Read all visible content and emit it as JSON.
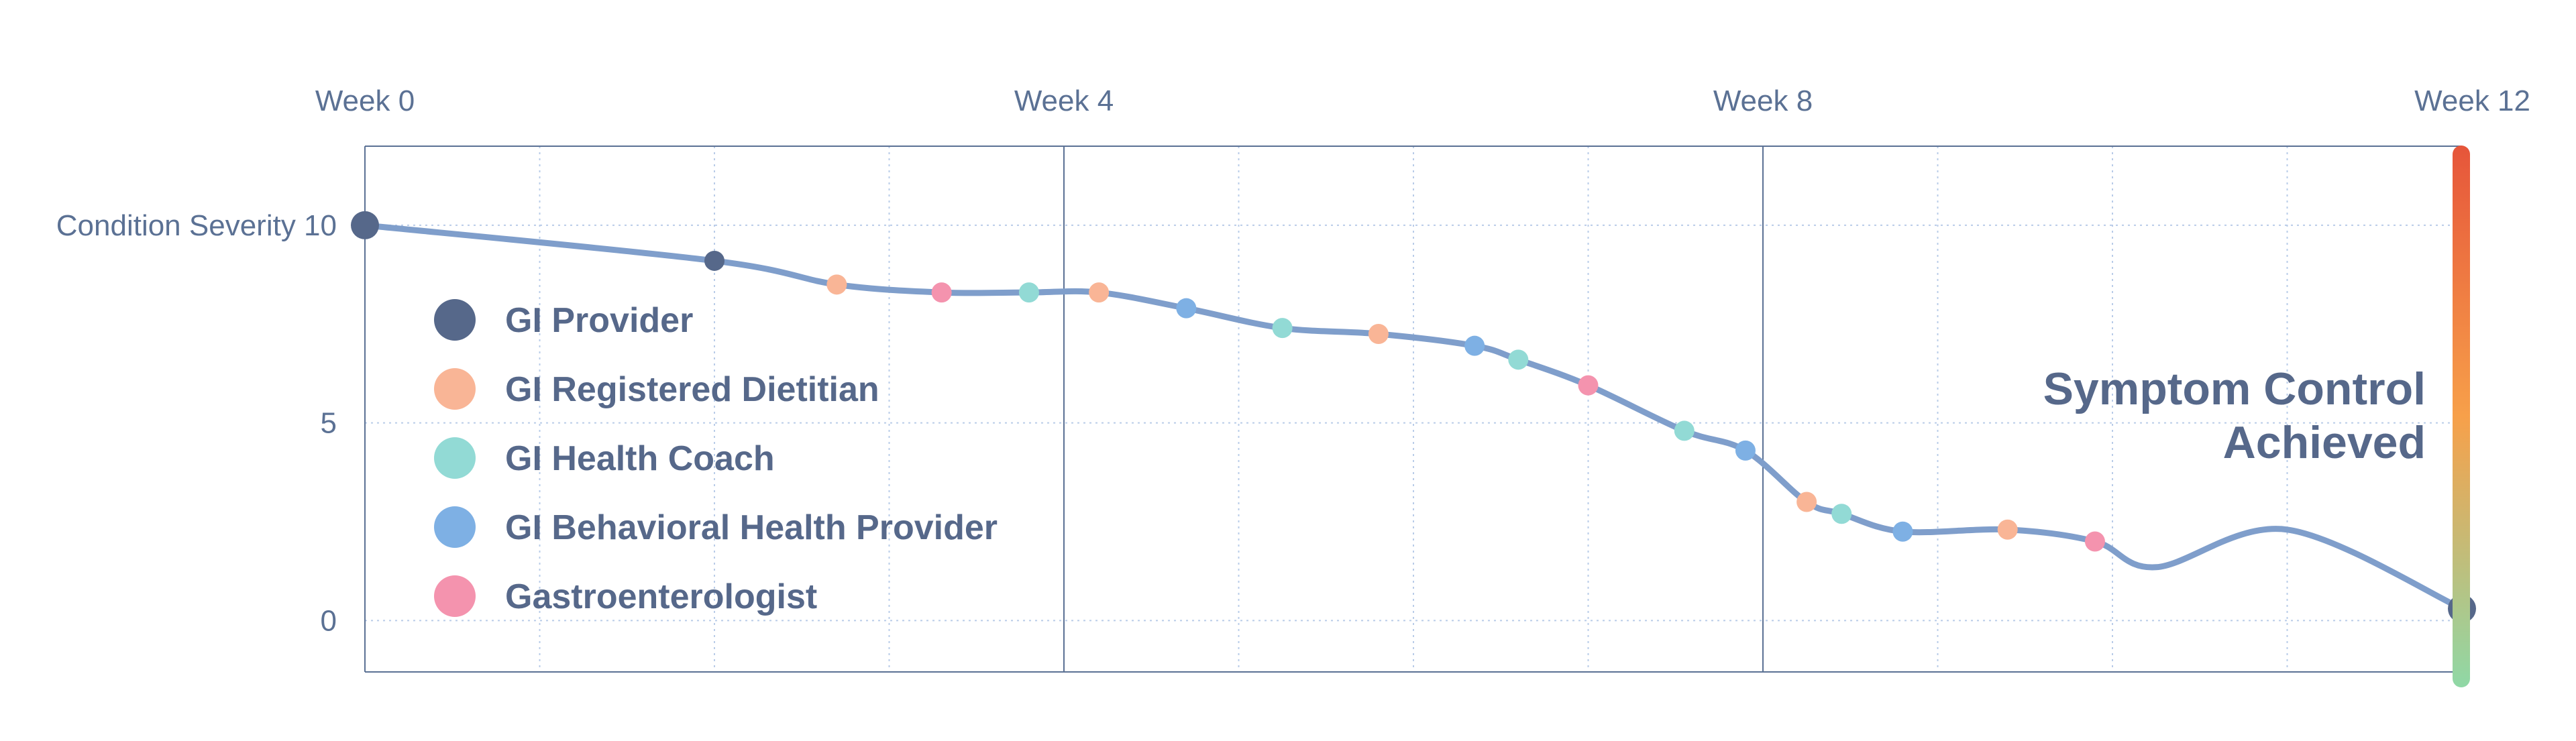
{
  "chart_data": {
    "type": "line",
    "x_axis": {
      "ticks": [
        "Week 0",
        "Week 4",
        "Week 8",
        "Week 12"
      ],
      "range": [
        0,
        12
      ]
    },
    "y_axis": {
      "ticks": [
        "Condition Severity 10",
        "5",
        "0"
      ],
      "range": [
        -1.3,
        12
      ]
    },
    "grid": true,
    "colors": {
      "line": "#7f9ecb",
      "axis": "#5b7194",
      "grid": "#b9cce8",
      "gradient": [
        "#e6553a",
        "#f7a04a",
        "#8fd8a6"
      ]
    },
    "series": [
      {
        "type": "line",
        "points": [
          {
            "x": 0.0,
            "y": 10.0
          },
          {
            "x": 2.0,
            "y": 9.1
          },
          {
            "x": 2.7,
            "y": 8.5
          },
          {
            "x": 3.3,
            "y": 8.3
          },
          {
            "x": 3.8,
            "y": 8.3
          },
          {
            "x": 4.2,
            "y": 8.3
          },
          {
            "x": 4.7,
            "y": 7.9
          },
          {
            "x": 5.25,
            "y": 7.4
          },
          {
            "x": 5.8,
            "y": 7.25
          },
          {
            "x": 6.35,
            "y": 6.95
          },
          {
            "x": 6.6,
            "y": 6.6
          },
          {
            "x": 7.0,
            "y": 5.95
          },
          {
            "x": 7.55,
            "y": 4.8
          },
          {
            "x": 7.9,
            "y": 4.3
          },
          {
            "x": 8.25,
            "y": 3.0
          },
          {
            "x": 8.45,
            "y": 2.7
          },
          {
            "x": 8.8,
            "y": 2.25
          },
          {
            "x": 9.4,
            "y": 2.3
          },
          {
            "x": 9.9,
            "y": 2.0
          },
          {
            "x": 10.25,
            "y": 1.35
          },
          {
            "x": 11.0,
            "y": 2.3
          },
          {
            "x": 12.0,
            "y": 0.3
          }
        ]
      }
    ],
    "markers": [
      {
        "x": 0.0,
        "y": 10.0,
        "role": "GI Provider",
        "size": "large"
      },
      {
        "x": 2.0,
        "y": 9.1,
        "role": "GI Provider"
      },
      {
        "x": 2.7,
        "y": 8.5,
        "role": "GI Registered Dietitian"
      },
      {
        "x": 3.3,
        "y": 8.3,
        "role": "Gastroenterologist"
      },
      {
        "x": 3.8,
        "y": 8.3,
        "role": "GI Health Coach"
      },
      {
        "x": 4.2,
        "y": 8.3,
        "role": "GI Registered Dietitian"
      },
      {
        "x": 4.7,
        "y": 7.9,
        "role": "GI Behavioral Health Provider"
      },
      {
        "x": 5.25,
        "y": 7.4,
        "role": "GI Health Coach"
      },
      {
        "x": 5.8,
        "y": 7.25,
        "role": "GI Registered Dietitian"
      },
      {
        "x": 6.35,
        "y": 6.95,
        "role": "GI Behavioral Health Provider"
      },
      {
        "x": 6.6,
        "y": 6.6,
        "role": "GI Health Coach"
      },
      {
        "x": 7.0,
        "y": 5.95,
        "role": "Gastroenterologist"
      },
      {
        "x": 7.55,
        "y": 4.8,
        "role": "GI Health Coach"
      },
      {
        "x": 7.9,
        "y": 4.3,
        "role": "GI Behavioral Health Provider"
      },
      {
        "x": 8.25,
        "y": 3.0,
        "role": "GI Registered Dietitian"
      },
      {
        "x": 8.45,
        "y": 2.7,
        "role": "GI Health Coach"
      },
      {
        "x": 8.8,
        "y": 2.25,
        "role": "GI Behavioral Health Provider"
      },
      {
        "x": 9.4,
        "y": 2.3,
        "role": "GI Registered Dietitian"
      },
      {
        "x": 9.9,
        "y": 2.0,
        "role": "Gastroenterologist"
      },
      {
        "x": 12.0,
        "y": 0.3,
        "role": "GI Provider",
        "size": "large"
      }
    ],
    "legend": {
      "placement": "left",
      "items": [
        {
          "label": "GI Provider",
          "color": "#56688a"
        },
        {
          "label": "GI Registered Dietitian",
          "color": "#f9b596"
        },
        {
          "label": "GI Health Coach",
          "color": "#92dad5"
        },
        {
          "label": "GI Behavioral Health Provider",
          "color": "#7eb0e4"
        },
        {
          "label": "Gastroenterologist",
          "color": "#f493ae"
        }
      ]
    },
    "annotation": {
      "lines": [
        "Symptom Control",
        "Achieved"
      ]
    }
  }
}
